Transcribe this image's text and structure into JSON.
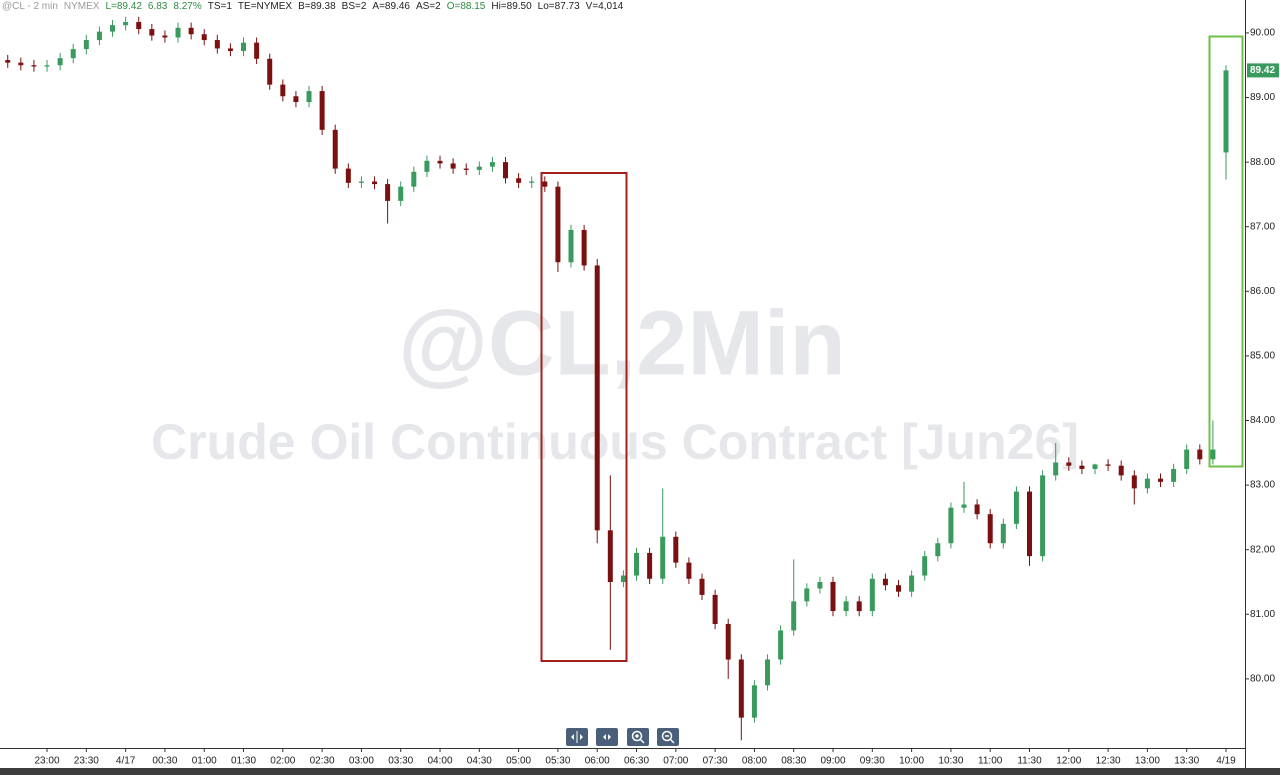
{
  "chart_data": {
    "type": "candlestick",
    "info_bar": [
      {
        "text": "@CL - 2 min",
        "color": "#9a9a9a"
      },
      {
        "text": "NYMEX",
        "color": "#9a9a9a"
      },
      {
        "text": "L=89.42",
        "color": "#2e8b3e"
      },
      {
        "text": "6.83",
        "color": "#2e8b3e"
      },
      {
        "text": "8.27%",
        "color": "#2e8b3e"
      },
      {
        "text": "TS=1",
        "color": "#222222"
      },
      {
        "text": "TE=NYMEX",
        "color": "#222222"
      },
      {
        "text": "B=89.38",
        "color": "#222222"
      },
      {
        "text": "BS=2",
        "color": "#222222"
      },
      {
        "text": "A=89.46",
        "color": "#222222"
      },
      {
        "text": "AS=2",
        "color": "#222222"
      },
      {
        "text": "O=88.15",
        "color": "#2e8b3e"
      },
      {
        "text": "Hi=89.50",
        "color": "#222222"
      },
      {
        "text": "Lo=87.73",
        "color": "#222222"
      },
      {
        "text": "V=4,014",
        "color": "#222222"
      }
    ],
    "watermark_symbol": "@CL,2Min",
    "watermark_name": "Crude Oil Continuous Contract [Jun26]",
    "up_color": "#3a9a5e",
    "down_color": "#7a1010",
    "last_price": 89.42,
    "last_price_color": "#3a9a5e",
    "xlim": [
      -0.59,
      94.45
    ],
    "ylim": [
      78.93,
      90.51
    ],
    "xticks": [
      {
        "value": 3,
        "label": "23:00"
      },
      {
        "value": 6,
        "label": "23:30"
      },
      {
        "value": 9,
        "label": "4/17"
      },
      {
        "value": 12,
        "label": "00:30"
      },
      {
        "value": 15,
        "label": "01:00"
      },
      {
        "value": 18,
        "label": "01:30"
      },
      {
        "value": 21,
        "label": "02:00"
      },
      {
        "value": 24,
        "label": "02:30"
      },
      {
        "value": 27,
        "label": "03:00"
      },
      {
        "value": 30,
        "label": "03:30"
      },
      {
        "value": 33,
        "label": "04:00"
      },
      {
        "value": 36,
        "label": "04:30"
      },
      {
        "value": 39,
        "label": "05:00"
      },
      {
        "value": 42,
        "label": "05:30"
      },
      {
        "value": 45,
        "label": "06:00"
      },
      {
        "value": 48,
        "label": "06:30"
      },
      {
        "value": 51,
        "label": "07:00"
      },
      {
        "value": 54,
        "label": "07:30"
      },
      {
        "value": 57,
        "label": "08:00"
      },
      {
        "value": 60,
        "label": "08:30"
      },
      {
        "value": 63,
        "label": "09:00"
      },
      {
        "value": 66,
        "label": "09:30"
      },
      {
        "value": 69,
        "label": "10:00"
      },
      {
        "value": 72,
        "label": "10:30"
      },
      {
        "value": 75,
        "label": "11:00"
      },
      {
        "value": 78,
        "label": "11:30"
      },
      {
        "value": 81,
        "label": "12:00"
      },
      {
        "value": 84,
        "label": "12:30"
      },
      {
        "value": 87,
        "label": "13:00"
      },
      {
        "value": 90,
        "label": "13:30"
      },
      {
        "value": 93,
        "label": "4/19"
      }
    ],
    "yticks": [
      {
        "value": 80,
        "label": "80.00"
      },
      {
        "value": 81,
        "label": "81.00"
      },
      {
        "value": 82,
        "label": "82.00"
      },
      {
        "value": 83,
        "label": "83.00"
      },
      {
        "value": 84,
        "label": "84.00"
      },
      {
        "value": 85,
        "label": "85.00"
      },
      {
        "value": 86,
        "label": "86.00"
      },
      {
        "value": 87,
        "label": "87.00"
      },
      {
        "value": 88,
        "label": "88.00"
      },
      {
        "value": 89,
        "label": "89.00"
      },
      {
        "value": 90,
        "label": "90.00"
      }
    ],
    "open": [
      89.58,
      89.54,
      89.5,
      89.48,
      89.5,
      89.61,
      89.75,
      89.89,
      90.02,
      90.12,
      90.17,
      90.06,
      89.96,
      89.93,
      90.08,
      89.98,
      89.89,
      89.76,
      89.72,
      89.85,
      89.6,
      89.2,
      89.02,
      88.93,
      89.1,
      88.5,
      87.9,
      87.68,
      87.7,
      87.66,
      87.4,
      87.62,
      87.85,
      88.02,
      87.98,
      87.9,
      87.88,
      87.93,
      88.0,
      87.75,
      87.68,
      87.7,
      87.62,
      86.45,
      86.95,
      86.4,
      82.3,
      81.5,
      81.6,
      81.95,
      81.55,
      82.2,
      81.8,
      81.55,
      81.3,
      80.85,
      80.3,
      79.4,
      79.9,
      80.3,
      80.75,
      81.2,
      81.4,
      81.5,
      81.05,
      81.2,
      81.05,
      81.55,
      81.45,
      81.35,
      81.6,
      81.9,
      82.1,
      82.65,
      82.7,
      82.55,
      82.1,
      82.4,
      82.9,
      81.9,
      83.15,
      83.35,
      83.3,
      83.25,
      83.32,
      83.3,
      83.15,
      82.95,
      83.1,
      83.05,
      83.25,
      83.55,
      83.4,
      88.15
    ],
    "high": [
      89.66,
      89.62,
      89.58,
      89.58,
      89.69,
      89.83,
      89.97,
      90.1,
      90.2,
      90.25,
      90.25,
      90.14,
      90.04,
      90.16,
      90.16,
      90.06,
      89.97,
      89.84,
      89.93,
      89.93,
      89.68,
      89.28,
      89.1,
      89.18,
      89.18,
      88.58,
      87.98,
      87.78,
      87.78,
      87.74,
      87.7,
      87.93,
      88.1,
      88.1,
      88.06,
      87.98,
      88.01,
      88.08,
      88.08,
      87.83,
      87.78,
      87.78,
      87.7,
      87.03,
      87.03,
      86.5,
      83.15,
      81.68,
      82.03,
      82.03,
      82.95,
      82.28,
      81.88,
      81.63,
      81.38,
      80.93,
      80.38,
      79.98,
      80.38,
      80.83,
      81.85,
      81.48,
      81.58,
      81.58,
      81.28,
      81.28,
      81.63,
      81.63,
      81.53,
      81.68,
      81.98,
      82.18,
      82.73,
      83.05,
      82.78,
      82.63,
      82.48,
      82.98,
      82.98,
      83.23,
      83.65,
      83.43,
      83.38,
      83.33,
      83.4,
      83.38,
      83.23,
      83.18,
      83.18,
      83.33,
      83.63,
      83.63,
      84.0,
      89.5
    ],
    "low": [
      89.46,
      89.42,
      89.4,
      89.4,
      89.42,
      89.53,
      89.67,
      89.81,
      89.94,
      90.04,
      89.98,
      89.88,
      89.85,
      89.85,
      89.9,
      89.81,
      89.68,
      89.64,
      89.64,
      89.52,
      89.12,
      88.94,
      88.85,
      88.85,
      88.42,
      87.82,
      87.6,
      87.6,
      87.58,
      87.05,
      87.32,
      87.54,
      87.77,
      87.9,
      87.82,
      87.8,
      87.8,
      87.85,
      87.67,
      87.6,
      87.6,
      87.54,
      86.3,
      86.37,
      86.32,
      82.1,
      80.45,
      81.42,
      81.52,
      81.47,
      81.47,
      81.72,
      81.47,
      81.22,
      80.77,
      80.0,
      79.05,
      79.32,
      79.82,
      80.22,
      80.67,
      81.12,
      81.32,
      80.97,
      80.97,
      80.97,
      80.97,
      81.37,
      81.27,
      81.27,
      81.52,
      81.82,
      82.02,
      82.57,
      82.47,
      82.02,
      82.02,
      82.32,
      81.75,
      81.82,
      83.07,
      83.22,
      83.17,
      83.17,
      83.22,
      83.07,
      82.7,
      82.87,
      82.97,
      82.97,
      83.17,
      83.32,
      83.32,
      87.73
    ],
    "close": [
      89.54,
      89.5,
      89.48,
      89.5,
      89.61,
      89.75,
      89.89,
      90.02,
      90.12,
      90.17,
      90.06,
      89.96,
      89.93,
      90.08,
      89.98,
      89.89,
      89.76,
      89.72,
      89.85,
      89.6,
      89.2,
      89.02,
      88.93,
      89.1,
      88.5,
      87.9,
      87.68,
      87.7,
      87.66,
      87.4,
      87.62,
      87.85,
      88.02,
      87.98,
      87.9,
      87.88,
      87.93,
      88.0,
      87.75,
      87.68,
      87.7,
      87.62,
      86.45,
      86.95,
      86.4,
      82.3,
      81.5,
      81.6,
      81.95,
      81.55,
      82.2,
      81.8,
      81.55,
      81.3,
      80.85,
      80.3,
      79.4,
      79.9,
      80.3,
      80.75,
      81.2,
      81.4,
      81.5,
      81.05,
      81.2,
      81.05,
      81.55,
      81.45,
      81.35,
      81.6,
      81.9,
      82.1,
      82.65,
      82.7,
      82.55,
      82.1,
      82.4,
      82.9,
      81.9,
      83.15,
      83.35,
      83.3,
      83.25,
      83.32,
      83.3,
      83.15,
      82.95,
      83.1,
      83.05,
      83.25,
      83.55,
      83.4,
      83.55,
      89.42
    ]
  }
}
